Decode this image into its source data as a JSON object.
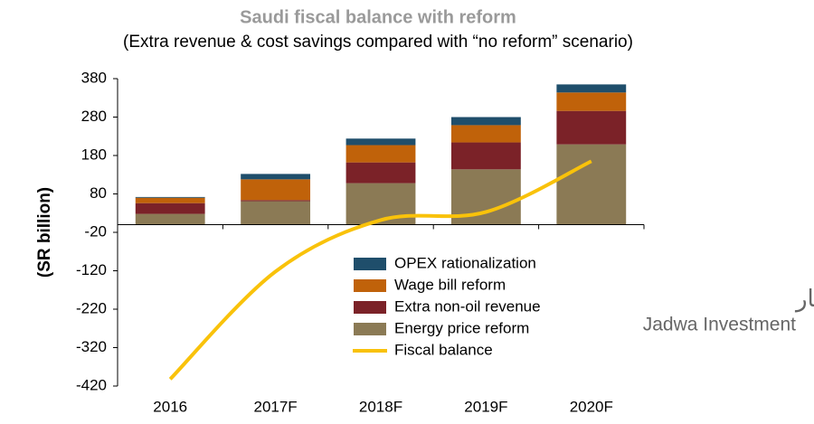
{
  "chart_data": {
    "type": "bar",
    "stacked": true,
    "title": "Saudi fiscal balance with reform",
    "subtitle": "(Extra revenue & cost savings compared with “no reform” scenario)",
    "y_label": "(SR billion)",
    "categories": [
      "2016",
      "2017F",
      "2018F",
      "2019F",
      "2020F"
    ],
    "series": [
      {
        "name": "Energy price reform",
        "color": "#8b7a55",
        "values": [
          28,
          61,
          108,
          144,
          209
        ]
      },
      {
        "name": "Extra non-oil revenue",
        "color": "#7b2228",
        "values": [
          28,
          3,
          54,
          70,
          87
        ]
      },
      {
        "name": "Wage bill reform",
        "color": "#c0620a",
        "values": [
          14,
          54,
          45,
          45,
          48
        ]
      },
      {
        "name": "OPEX rationalization",
        "color": "#1f4e6b",
        "values": [
          2,
          14,
          17,
          21,
          21
        ]
      },
      {
        "name": "Fiscal balance",
        "type": "line",
        "color": "#f9c20a",
        "values": [
          -402,
          -122,
          12,
          33,
          165
        ]
      }
    ],
    "ylim": [
      -420,
      380
    ],
    "yticks": [
      -420,
      -320,
      -220,
      -120,
      -20,
      80,
      180,
      280,
      380
    ],
    "grid": false,
    "logo": {
      "arabic": "جدوى للإستثمار",
      "english": "Jadwa Investment"
    }
  }
}
